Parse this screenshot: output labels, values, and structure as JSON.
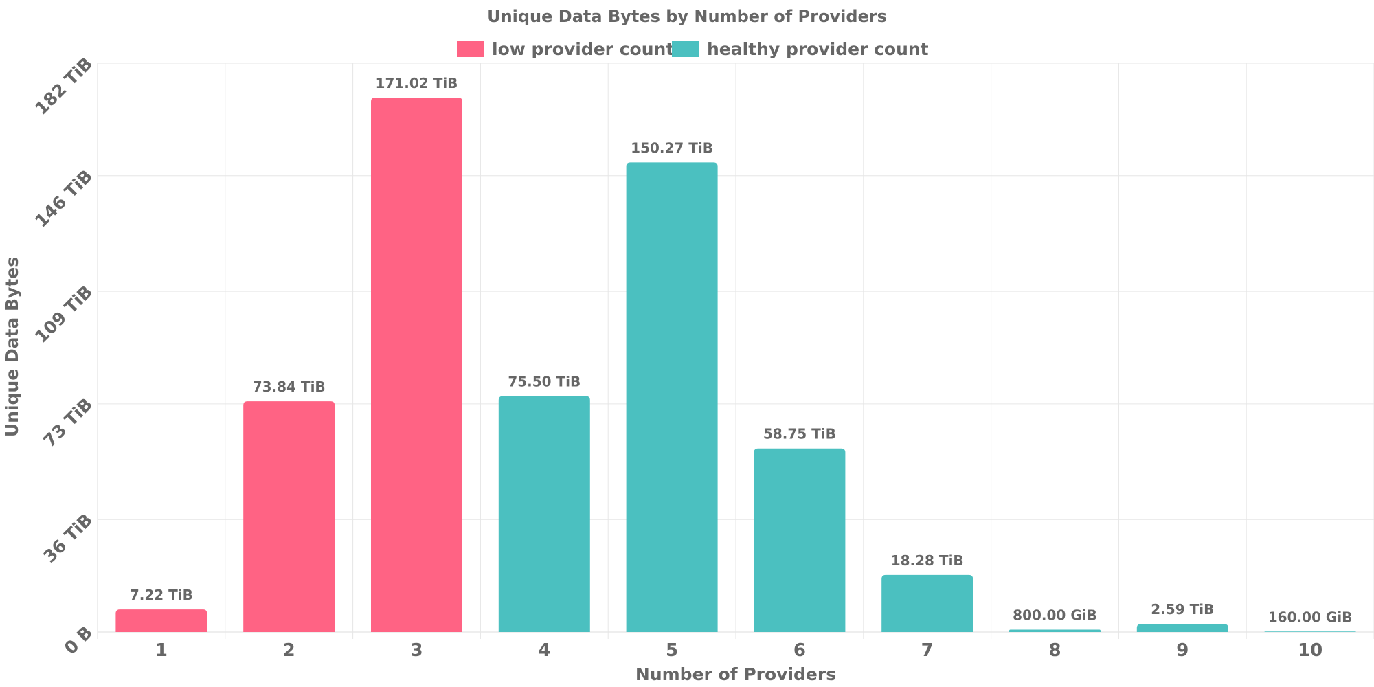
{
  "chart_data": {
    "type": "bar",
    "title": "Unique Data Bytes by Number of Providers",
    "xlabel": "Number of Providers",
    "ylabel": "Unique Data Bytes",
    "categories": [
      "1",
      "2",
      "3",
      "4",
      "5",
      "6",
      "7",
      "8",
      "9",
      "10"
    ],
    "values_tib": [
      7.22,
      73.84,
      171.02,
      75.5,
      150.27,
      58.75,
      18.28,
      0.78125,
      2.59,
      0.15625
    ],
    "value_labels": [
      "7.22 TiB",
      "73.84 TiB",
      "171.02 TiB",
      "75.50 TiB",
      "150.27 TiB",
      "58.75 TiB",
      "18.28 TiB",
      "800.00 GiB",
      "2.59 TiB",
      "160.00 GiB"
    ],
    "bar_series": [
      "low",
      "low",
      "low",
      "healthy",
      "healthy",
      "healthy",
      "healthy",
      "healthy",
      "healthy",
      "healthy"
    ],
    "series": [
      {
        "key": "low",
        "name": "low provider count",
        "color": "#ff6384"
      },
      {
        "key": "healthy",
        "name": "healthy provider count",
        "color": "#4bc0c0"
      }
    ],
    "y_ticks": [
      {
        "value": 0,
        "label": "0 B"
      },
      {
        "value": 36,
        "label": "36 TiB"
      },
      {
        "value": 73,
        "label": "73 TiB"
      },
      {
        "value": 109,
        "label": "109 TiB"
      },
      {
        "value": 146,
        "label": "146 TiB"
      },
      {
        "value": 182,
        "label": "182 TiB"
      }
    ],
    "ylim": [
      0,
      182
    ],
    "grid": true,
    "legend_position": "top"
  }
}
